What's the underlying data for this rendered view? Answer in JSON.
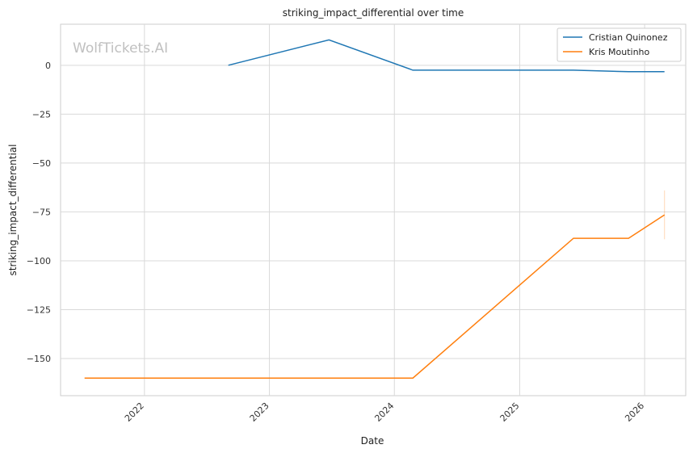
{
  "chart_data": {
    "type": "line",
    "title": "striking_impact_differential over time",
    "xlabel": "Date",
    "ylabel": "striking_impact_differential",
    "watermark": "WolfTickets.AI",
    "x_ticks": [
      "2022",
      "2023",
      "2024",
      "2025",
      "2026"
    ],
    "y_ticks": [
      0,
      -25,
      -50,
      -75,
      -100,
      -125,
      -150
    ],
    "y_tick_labels": [
      "0",
      "−25",
      "−50",
      "−75",
      "−100",
      "−125",
      "−150"
    ],
    "xlim": [
      "2021-05-01",
      "2026-05-01"
    ],
    "ylim": [
      -169,
      21
    ],
    "grid": true,
    "legend_position": "top-right",
    "series": [
      {
        "name": "Cristian Quinonez",
        "color": "#1f77b4",
        "points": [
          {
            "x": "2022-09-03",
            "y": 0
          },
          {
            "x": "2023-06-24",
            "y": 13
          },
          {
            "x": "2024-02-24",
            "y": -2.5
          },
          {
            "x": "2025-06-07",
            "y": -2.5
          },
          {
            "x": "2025-11-15",
            "y": -3.3
          },
          {
            "x": "2026-02-28",
            "y": -3.3
          }
        ]
      },
      {
        "name": "Kris Moutinho",
        "color": "#ff7f0e",
        "points": [
          {
            "x": "2021-07-10",
            "y": -160
          },
          {
            "x": "2024-02-24",
            "y": -160
          },
          {
            "x": "2025-06-07",
            "y": -88.5
          },
          {
            "x": "2025-11-15",
            "y": -88.5
          },
          {
            "x": "2026-02-28",
            "y": -76.5
          }
        ],
        "error_bar": {
          "x": "2026-02-28",
          "low": -89,
          "high": -64
        }
      }
    ]
  }
}
